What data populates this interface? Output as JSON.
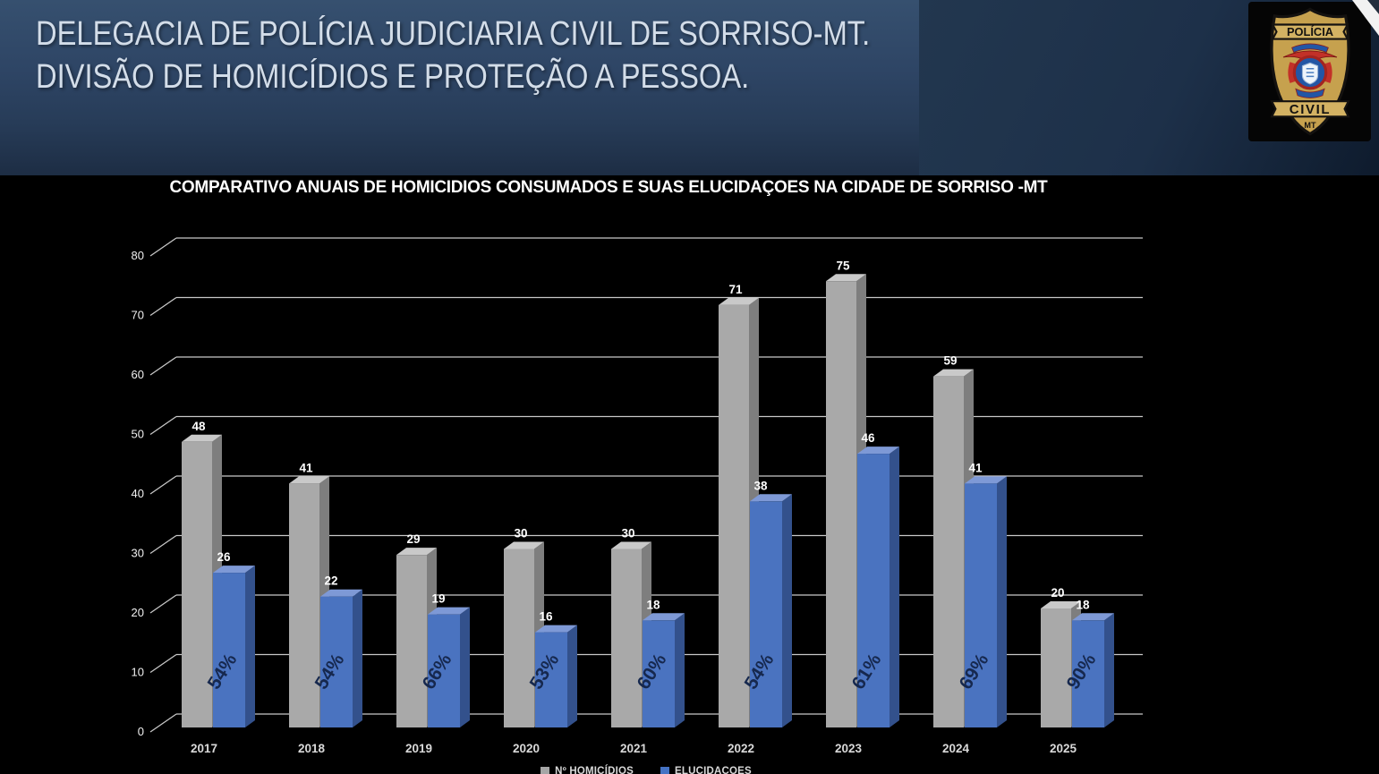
{
  "header": {
    "line1": "DELEGACIA DE POLÍCIA JUDICIARIA CIVIL DE SORRISO-MT.",
    "line2": "DIVISÃO DE HOMICÍDIOS E PROTEÇÃO A PESSOA.",
    "badge": {
      "top": "POLÍCIA",
      "bottom": "CIVIL",
      "state": "MT"
    }
  },
  "chart_data": {
    "type": "bar",
    "style": "3d-clustered-column",
    "title": "COMPARATIVO ANUAIS DE HOMICIDIOS CONSUMADOS E SUAS ELUCIDAÇOES NA CIDADE DE SORRISO -MT",
    "categories": [
      "2017",
      "2018",
      "2019",
      "2020",
      "2021",
      "2022",
      "2023",
      "2024",
      "2025"
    ],
    "series": [
      {
        "key": "homicidios",
        "name": "Nº HOMICÍDIOS",
        "color": "#a6a6a6",
        "values": [
          48,
          41,
          29,
          30,
          30,
          71,
          75,
          59,
          20
        ]
      },
      {
        "key": "elucidacoes",
        "name": "ELUCIDAÇOES",
        "color": "#4472c4",
        "values": [
          26,
          22,
          19,
          16,
          18,
          38,
          46,
          41,
          18
        ]
      }
    ],
    "percent_labels": [
      "54%",
      "54%",
      "66%",
      "53%",
      "60%",
      "54%",
      "61%",
      "69%",
      "90%"
    ],
    "ylabel": "",
    "xlabel": "",
    "ylim": [
      0,
      80
    ],
    "ytick_step": 10,
    "yticks": [
      0,
      10,
      20,
      30,
      40,
      50,
      60,
      70,
      80
    ],
    "grid": true,
    "legend_position": "bottom",
    "background": "#000000"
  },
  "colors": {
    "homicidios": {
      "front": "#a9a9a9",
      "top": "#c9c9c9",
      "side": "#7e7e7e"
    },
    "elucidacoes": {
      "front": "#4a73c0",
      "top": "#7e99d6",
      "side": "#33518c"
    },
    "percent_text": "#16284e",
    "gridline": "#c8c8c8",
    "value_text": "#ffffff",
    "tick_text": "#f0f0f0",
    "year_text": "#d9d9d9"
  }
}
